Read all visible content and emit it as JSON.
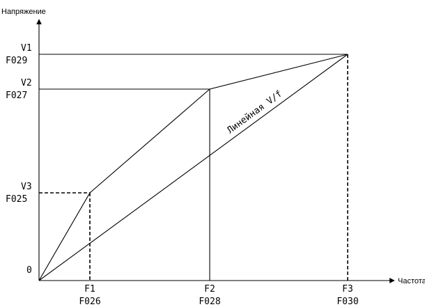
{
  "y_axis_label": "Напряжение",
  "x_axis_label": "Частота",
  "origin_label": "0",
  "voltage_points": [
    {
      "name": "V1",
      "code": "F029"
    },
    {
      "name": "V2",
      "code": "F027"
    },
    {
      "name": "V3",
      "code": "F025"
    }
  ],
  "frequency_points": [
    {
      "name": "F1",
      "code": "F026"
    },
    {
      "name": "F2",
      "code": "F028"
    },
    {
      "name": "F3",
      "code": "F030"
    }
  ],
  "linear_label": "Линейная V/f"
}
